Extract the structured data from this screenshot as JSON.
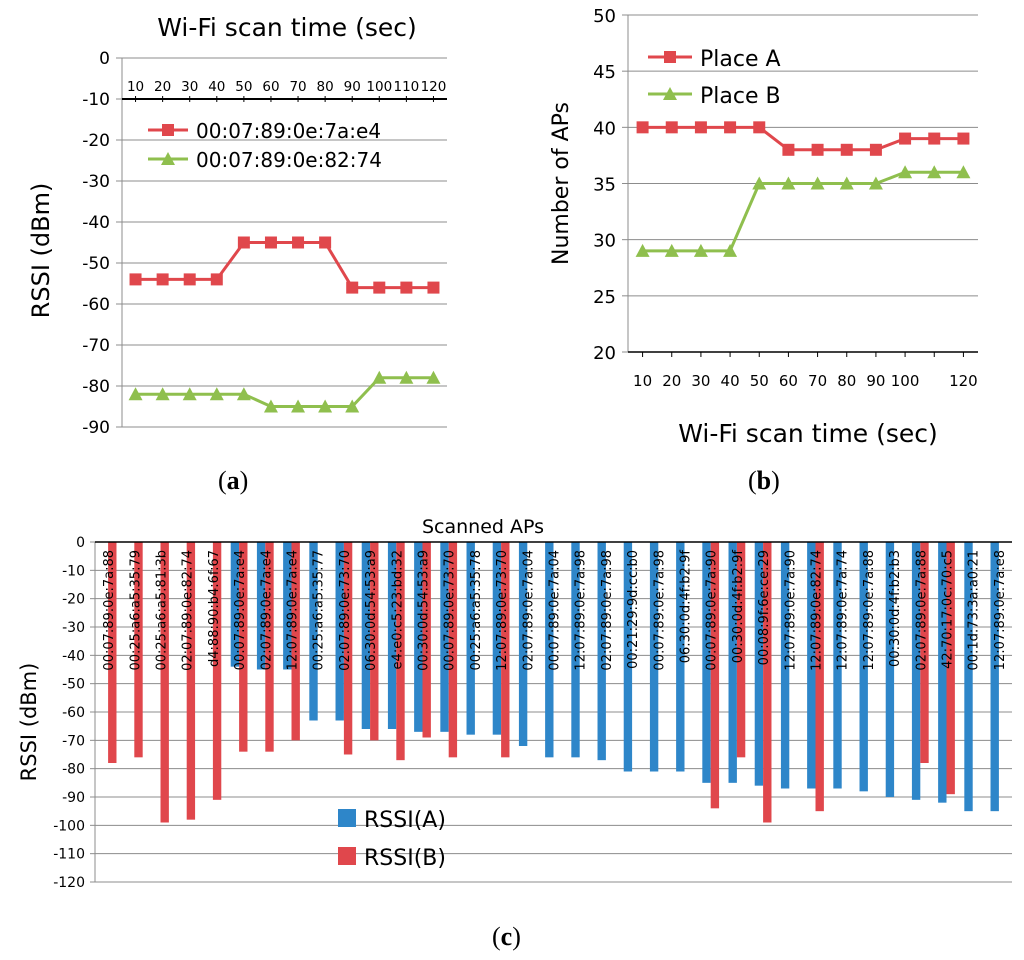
{
  "figure": {
    "panel_labels": [
      "a",
      "b",
      "c"
    ]
  },
  "chart_data": [
    {
      "type": "line",
      "title": "Wi-Fi scan time (sec)",
      "ylabel": "RSSI (dBm)",
      "xlabel": "",
      "x_tick_labels": [
        "10",
        "20",
        "30",
        "40",
        "50",
        "60",
        "70",
        "80",
        "90",
        "100",
        "110",
        "120"
      ],
      "y_ticks": [
        0,
        -10,
        -20,
        -30,
        -40,
        -50,
        -60,
        -70,
        -80,
        -90
      ],
      "ylim": [
        -90,
        0
      ],
      "grid": true,
      "x_axis_position": "top",
      "legend_placement": "top-left inside",
      "series": [
        {
          "name": "00:07:89:0e:7a:e4",
          "color": "#e0474c",
          "marker": "square",
          "values": [
            -54,
            -54,
            -54,
            -54,
            -45,
            -45,
            -45,
            -45,
            -56,
            -56,
            -56,
            -56
          ]
        },
        {
          "name": "00:07:89:0e:82:74",
          "color": "#8fbf4e",
          "marker": "triangle",
          "values": [
            -82,
            -82,
            -82,
            -82,
            -82,
            -85,
            -85,
            -85,
            -85,
            -78,
            -78,
            -78
          ]
        }
      ]
    },
    {
      "type": "line",
      "title": "",
      "xlabel": "Wi-Fi scan time (sec)",
      "ylabel": "Number of APs",
      "x_tick_labels": [
        "10",
        "20",
        "30",
        "40",
        "50",
        "60",
        "70",
        "80",
        "90",
        "100",
        "",
        "120"
      ],
      "y_ticks": [
        20,
        25,
        30,
        35,
        40,
        45,
        50
      ],
      "ylim": [
        20,
        50
      ],
      "grid": true,
      "legend_placement": "top-left inside",
      "series": [
        {
          "name": "Place A",
          "color": "#e0474c",
          "marker": "square",
          "values": [
            40,
            40,
            40,
            40,
            40,
            38,
            38,
            38,
            38,
            39,
            39,
            39
          ]
        },
        {
          "name": "Place B",
          "color": "#8fbf4e",
          "marker": "triangle",
          "values": [
            29,
            29,
            29,
            29,
            35,
            35,
            35,
            35,
            35,
            36,
            36,
            36
          ]
        }
      ]
    },
    {
      "type": "bar",
      "title": "Scanned APs",
      "ylabel": "RSSI (dBm)",
      "xlabel": "",
      "y_ticks": [
        0,
        -10,
        -20,
        -30,
        -40,
        -50,
        -60,
        -70,
        -80,
        -90,
        -100,
        -110,
        -120
      ],
      "ylim": [
        -120,
        0
      ],
      "grid": true,
      "legend_placement": "bottom-left inside",
      "categories": [
        "00:07:89:0e:7a:88",
        "00:25:a6:a5:35:79",
        "00:25:a6:a5:81:3b",
        "02:07:89:0e:82:74",
        "d4:88:90:b4:6f:67",
        "00:07:89:0e:7a:e4",
        "02:07:89:0e:7a:e4",
        "12:07:89:0e:7a:e4",
        "00:25:a6:a5:35:77",
        "02:07:89:0e:73:70",
        "06:30:0d:54:53:a9",
        "e4:e0:c5:23:bd:32",
        "00:30:0d:54:53:a9",
        "00:07:89:0e:73:70",
        "00:25:a6:a5:35:78",
        "12:07:89:0e:73:70",
        "02:07:89:0e:7a:04",
        "00:07:89:0e:7a:04",
        "12:07:89:0e:7a:98",
        "02:07:89:0e:7a:98",
        "00:21:29:9d:cc:b0",
        "00:07:89:0e:7a:98",
        "06:30:0d:4f:b2:9f",
        "00:07:89:0e:7a:90",
        "00:30:0d:4f:b2:9f",
        "00:08:9f:6e:ce:29",
        "12:07:89:0e:7a:90",
        "12:07:89:0e:82:74",
        "12:07:89:0e:7a:74",
        "12:07:89:0e:7a:88",
        "00:30:0d:4f:b2:b3",
        "02:07:89:0e:7a:88",
        "42:70:17:0c:70:c5",
        "00:1d:73:3a:a0:21",
        "12:07:89:0e:7a:e8"
      ],
      "series": [
        {
          "name": "RSSI(A)",
          "color": "#2e86c9",
          "values": [
            null,
            null,
            null,
            null,
            null,
            -44,
            -45,
            -45,
            -63,
            -63,
            -66,
            -66,
            -67,
            -67,
            -68,
            -68,
            -72,
            -76,
            -76,
            -77,
            -81,
            -81,
            -81,
            -85,
            -85,
            -86,
            -87,
            -87,
            -87,
            -88,
            -90,
            -91,
            -92,
            -95,
            -95
          ]
        },
        {
          "name": "RSSI(B)",
          "color": "#e0474c",
          "values": [
            -78,
            -76,
            -99,
            -98,
            -91,
            -74,
            -74,
            -70,
            null,
            -75,
            -70,
            -77,
            -69,
            -76,
            null,
            -76,
            null,
            null,
            null,
            null,
            null,
            null,
            null,
            -94,
            -76,
            -99,
            null,
            -95,
            null,
            null,
            null,
            -78,
            -89,
            null,
            null
          ]
        }
      ]
    }
  ]
}
